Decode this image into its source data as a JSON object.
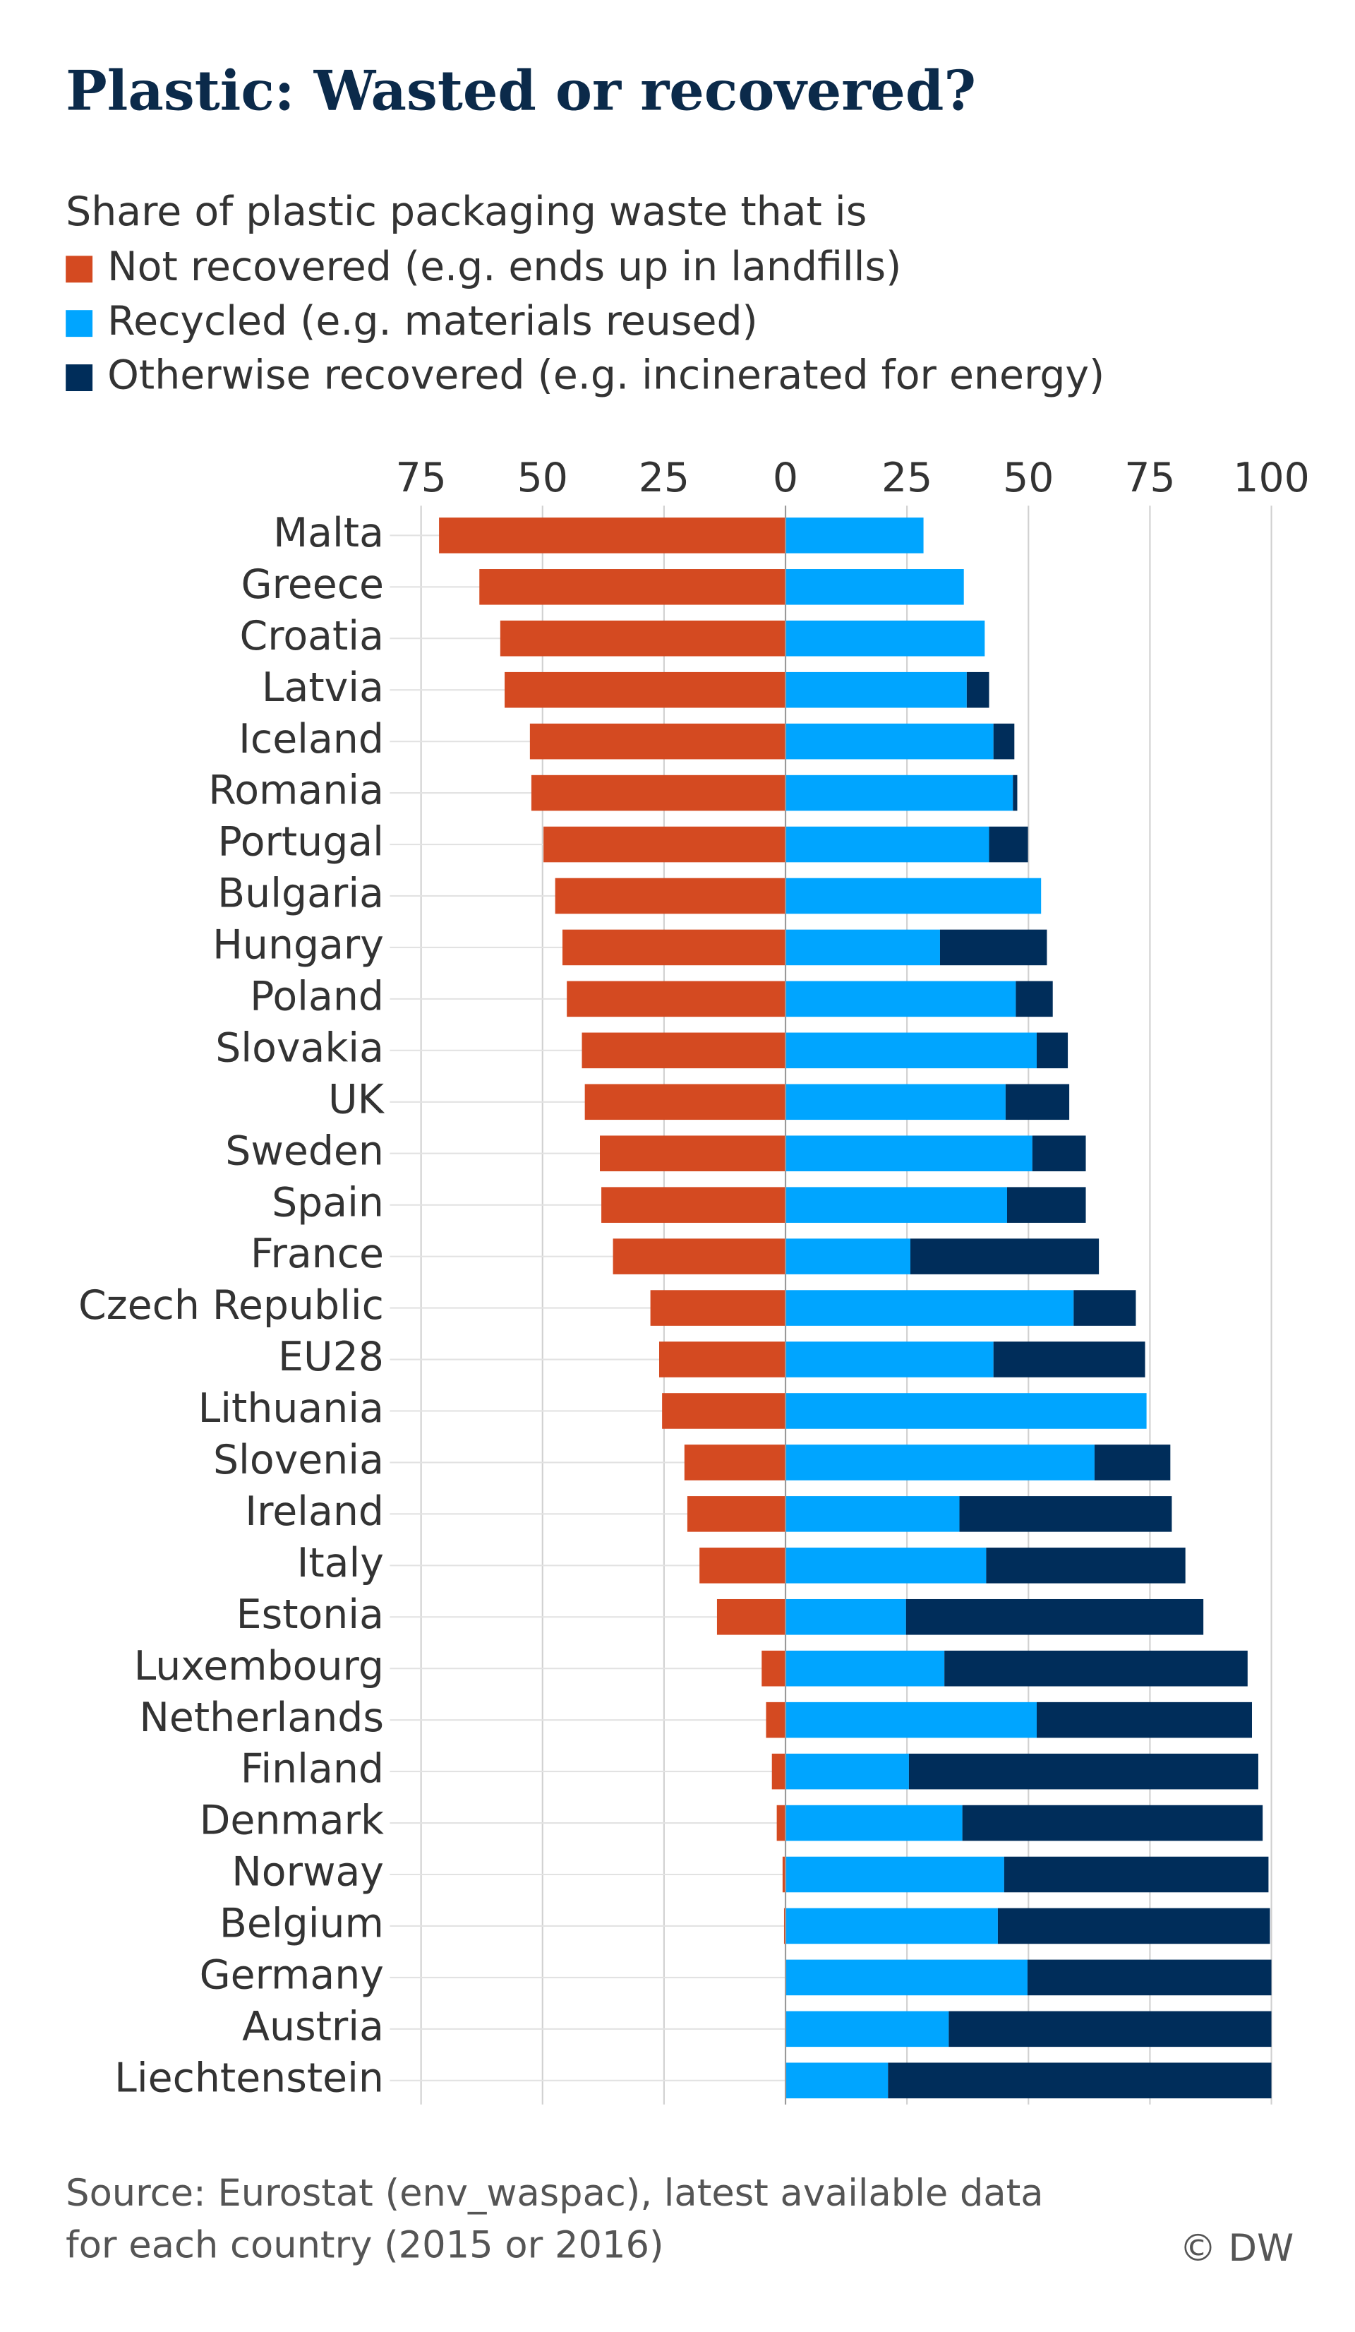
{
  "chart_data": {
    "type": "bar",
    "orientation": "horizontal",
    "stacked": true,
    "title": "Plastic: Wasted or recovered?",
    "subtitle": "Share of plastic packaging waste that is",
    "categories": [
      "Malta",
      "Greece",
      "Croatia",
      "Latvia",
      "Iceland",
      "Romania",
      "Portugal",
      "Bulgaria",
      "Hungary",
      "Poland",
      "Slovakia",
      "UK",
      "Sweden",
      "Spain",
      "France",
      "Czech Republic",
      "EU28",
      "Lithuania",
      "Slovenia",
      "Ireland",
      "Italy",
      "Estonia",
      "Luxembourg",
      "Netherlands",
      "Finland",
      "Denmark",
      "Norway",
      "Belgium",
      "Germany",
      "Austria",
      "Liechtenstein"
    ],
    "series": [
      {
        "name": "Not recovered (e.g. ends up in landfills)",
        "color": "#d44a21",
        "values": [
          -71.3,
          -63,
          -58.7,
          -57.8,
          -52.6,
          -52.3,
          -49.8,
          -47.4,
          -45.9,
          -45,
          -41.9,
          -41.3,
          -38.2,
          -37.9,
          -35.5,
          -27.8,
          -26,
          -25.4,
          -20.8,
          -20.2,
          -17.7,
          -14.1,
          -4.9,
          -4,
          -2.8,
          -1.8,
          -0.6,
          -0.3,
          0,
          0,
          0
        ]
      },
      {
        "name": "Recycled (e.g. materials reused)",
        "color": "#00a5ff",
        "values": [
          28.4,
          36.7,
          41,
          37.3,
          42.8,
          46.8,
          41.9,
          52.6,
          31.8,
          47.4,
          51.7,
          45.3,
          50.8,
          45.6,
          25.7,
          59.3,
          42.8,
          74.3,
          63.6,
          35.8,
          41.3,
          24.8,
          32.7,
          51.7,
          25.4,
          36.4,
          45,
          43.7,
          49.8,
          33.6,
          21.1
        ]
      },
      {
        "name": "Otherwise recovered (e.g. incinerated for energy)",
        "color": "#002d5a",
        "values": [
          0,
          0,
          0,
          4.6,
          4.3,
          0.9,
          8,
          0,
          22,
          7.6,
          6.4,
          13.1,
          11,
          16.2,
          38.8,
          12.8,
          31.2,
          0,
          15.6,
          43.7,
          41,
          61.2,
          62.4,
          44.3,
          71.9,
          61.8,
          54.4,
          56,
          50.2,
          66.4,
          78.9
        ]
      }
    ],
    "xlim": [
      -75,
      100
    ],
    "xticks": [
      {
        "value": -75,
        "label": "75"
      },
      {
        "value": -50,
        "label": "50"
      },
      {
        "value": -25,
        "label": "25"
      },
      0,
      25,
      50,
      75,
      100
    ],
    "grid": true,
    "source": [
      "Source: Eurostat (env_waspac), latest available data",
      "for each country (2015 or 2016)"
    ],
    "credit": "© DW"
  }
}
